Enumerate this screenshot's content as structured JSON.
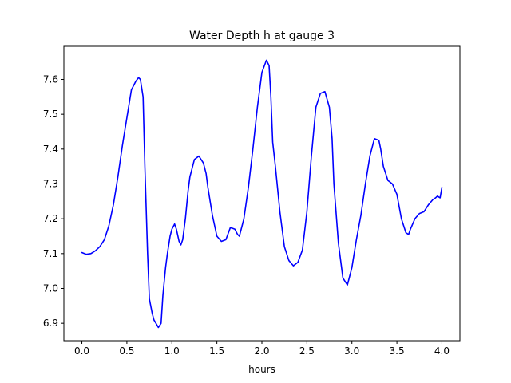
{
  "chart_data": {
    "type": "line",
    "title": "Water Depth h at gauge 3",
    "xlabel": "hours",
    "ylabel": "",
    "xlim": [
      -0.2,
      4.2
    ],
    "ylim": [
      6.85,
      7.695
    ],
    "xticks": [
      0.0,
      0.5,
      1.0,
      1.5,
      2.0,
      2.5,
      3.0,
      3.5,
      4.0
    ],
    "xtick_labels": [
      "0.0",
      "0.5",
      "1.0",
      "1.5",
      "2.0",
      "2.5",
      "3.0",
      "3.5",
      "4.0"
    ],
    "yticks": [
      6.9,
      7.0,
      7.1,
      7.2,
      7.3,
      7.4,
      7.5,
      7.6
    ],
    "ytick_labels": [
      "6.9",
      "7.0",
      "7.1",
      "7.2",
      "7.3",
      "7.4",
      "7.5",
      "7.6"
    ],
    "grid": false,
    "series": [
      {
        "color": "#0000ff",
        "x": [
          0.0,
          0.05,
          0.1,
          0.15,
          0.2,
          0.25,
          0.3,
          0.35,
          0.4,
          0.45,
          0.5,
          0.55,
          0.6,
          0.63,
          0.65,
          0.68,
          0.7,
          0.73,
          0.75,
          0.78,
          0.8,
          0.85,
          0.88,
          0.9,
          0.93,
          0.95,
          0.98,
          1.0,
          1.03,
          1.05,
          1.08,
          1.1,
          1.12,
          1.15,
          1.18,
          1.2,
          1.25,
          1.3,
          1.35,
          1.38,
          1.4,
          1.45,
          1.5,
          1.55,
          1.6,
          1.65,
          1.7,
          1.73,
          1.75,
          1.8,
          1.85,
          1.9,
          1.95,
          2.0,
          2.05,
          2.08,
          2.1,
          2.12,
          2.15,
          2.2,
          2.25,
          2.3,
          2.35,
          2.4,
          2.45,
          2.5,
          2.55,
          2.6,
          2.65,
          2.7,
          2.75,
          2.78,
          2.8,
          2.85,
          2.9,
          2.95,
          3.0,
          3.05,
          3.1,
          3.15,
          3.2,
          3.25,
          3.3,
          3.32,
          3.35,
          3.4,
          3.45,
          3.5,
          3.55,
          3.6,
          3.63,
          3.65,
          3.7,
          3.75,
          3.8,
          3.85,
          3.9,
          3.93,
          3.95,
          3.98,
          4.0
        ],
        "y": [
          7.103,
          7.098,
          7.1,
          7.108,
          7.12,
          7.14,
          7.18,
          7.24,
          7.32,
          7.41,
          7.49,
          7.57,
          7.595,
          7.605,
          7.6,
          7.55,
          7.35,
          7.1,
          6.97,
          6.93,
          6.91,
          6.888,
          6.9,
          6.98,
          7.06,
          7.1,
          7.15,
          7.17,
          7.185,
          7.17,
          7.135,
          7.125,
          7.14,
          7.2,
          7.28,
          7.32,
          7.37,
          7.38,
          7.36,
          7.33,
          7.29,
          7.21,
          7.15,
          7.135,
          7.14,
          7.175,
          7.17,
          7.155,
          7.15,
          7.2,
          7.29,
          7.4,
          7.52,
          7.62,
          7.655,
          7.64,
          7.55,
          7.42,
          7.35,
          7.22,
          7.12,
          7.08,
          7.065,
          7.075,
          7.11,
          7.22,
          7.38,
          7.52,
          7.56,
          7.565,
          7.52,
          7.43,
          7.3,
          7.13,
          7.03,
          7.01,
          7.06,
          7.14,
          7.21,
          7.3,
          7.38,
          7.43,
          7.425,
          7.4,
          7.35,
          7.31,
          7.3,
          7.27,
          7.2,
          7.16,
          7.155,
          7.17,
          7.2,
          7.215,
          7.22,
          7.24,
          7.255,
          7.26,
          7.265,
          7.26,
          7.29
        ]
      }
    ]
  }
}
